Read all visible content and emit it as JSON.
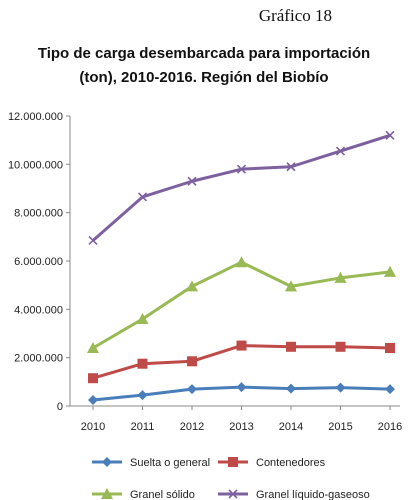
{
  "figure": {
    "caption": "Gráfico 18"
  },
  "chart_data": {
    "type": "line",
    "title_line1": "Tipo de carga desembarcada para importación",
    "title_line2": "(ton), 2010-2016. Región del Biobío",
    "categories": [
      "2010",
      "2011",
      "2012",
      "2013",
      "2014",
      "2015",
      "2016"
    ],
    "ylim": [
      0,
      12000000
    ],
    "yticks": [
      0,
      2000000,
      4000000,
      6000000,
      8000000,
      10000000,
      12000000
    ],
    "ytick_labels": [
      "0",
      "2.000.000",
      "4.000.000",
      "6.000.000",
      "8.000.000",
      "10.000.000",
      "12.000.000"
    ],
    "grid": false,
    "legend_position": "bottom",
    "series": [
      {
        "name": "Suelta o general",
        "color": "#4a7ebb",
        "marker": "diamond",
        "values": [
          250000,
          450000,
          700000,
          780000,
          720000,
          760000,
          700000
        ]
      },
      {
        "name": "Contenedores",
        "color": "#be4b48",
        "marker": "square",
        "values": [
          1150000,
          1750000,
          1850000,
          2500000,
          2450000,
          2450000,
          2400000
        ]
      },
      {
        "name": "Granel sólido",
        "color": "#98b954",
        "marker": "triangle",
        "values": [
          2400000,
          3600000,
          4950000,
          5950000,
          4950000,
          5300000,
          5550000
        ]
      },
      {
        "name": "Granel líquido-gaseoso",
        "color": "#7d60a0",
        "marker": "x",
        "values": [
          6850000,
          8650000,
          9300000,
          9800000,
          9900000,
          10550000,
          11200000
        ]
      }
    ]
  }
}
